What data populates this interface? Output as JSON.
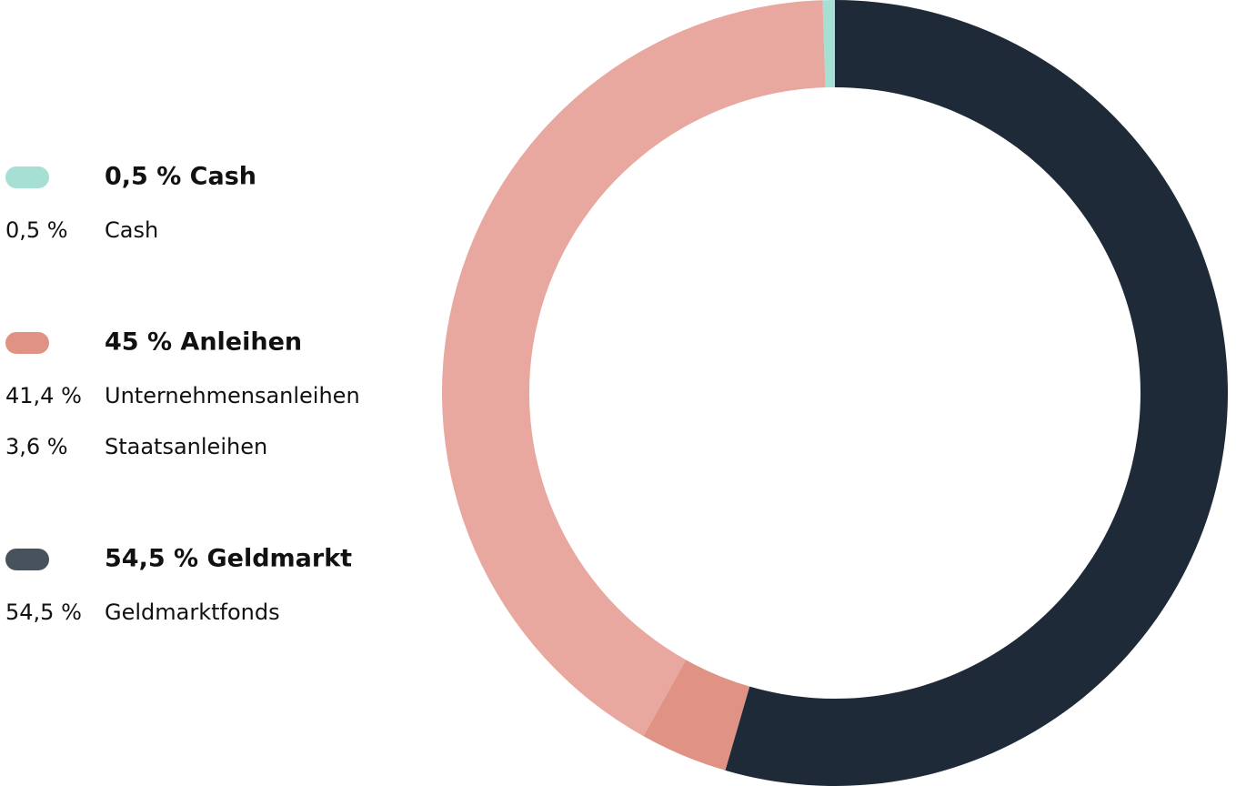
{
  "chart_data": {
    "type": "pie",
    "donut": true,
    "groups": [
      {
        "title": "0,5 % Cash",
        "color": "#a6dfd4",
        "categories": [
          "Cash"
        ],
        "values": [
          0.5
        ],
        "value_labels": [
          "0,5 %"
        ],
        "colors": [
          "#a6dfd4"
        ]
      },
      {
        "title": "45 % Anleihen",
        "color": "#e09385",
        "categories": [
          "Unternehmensanleihen",
          "Staatsanleihen"
        ],
        "values": [
          41.4,
          3.6
        ],
        "value_labels": [
          "41,4 %",
          "3,6 %"
        ],
        "colors": [
          "#e8a79f",
          "#e09385"
        ]
      },
      {
        "title": "54,5 % Geldmarkt",
        "color": "#47525d",
        "categories": [
          "Geldmarktfonds"
        ],
        "values": [
          54.5
        ],
        "value_labels": [
          "54,5 %"
        ],
        "colors": [
          "#1e2a37"
        ]
      }
    ]
  }
}
